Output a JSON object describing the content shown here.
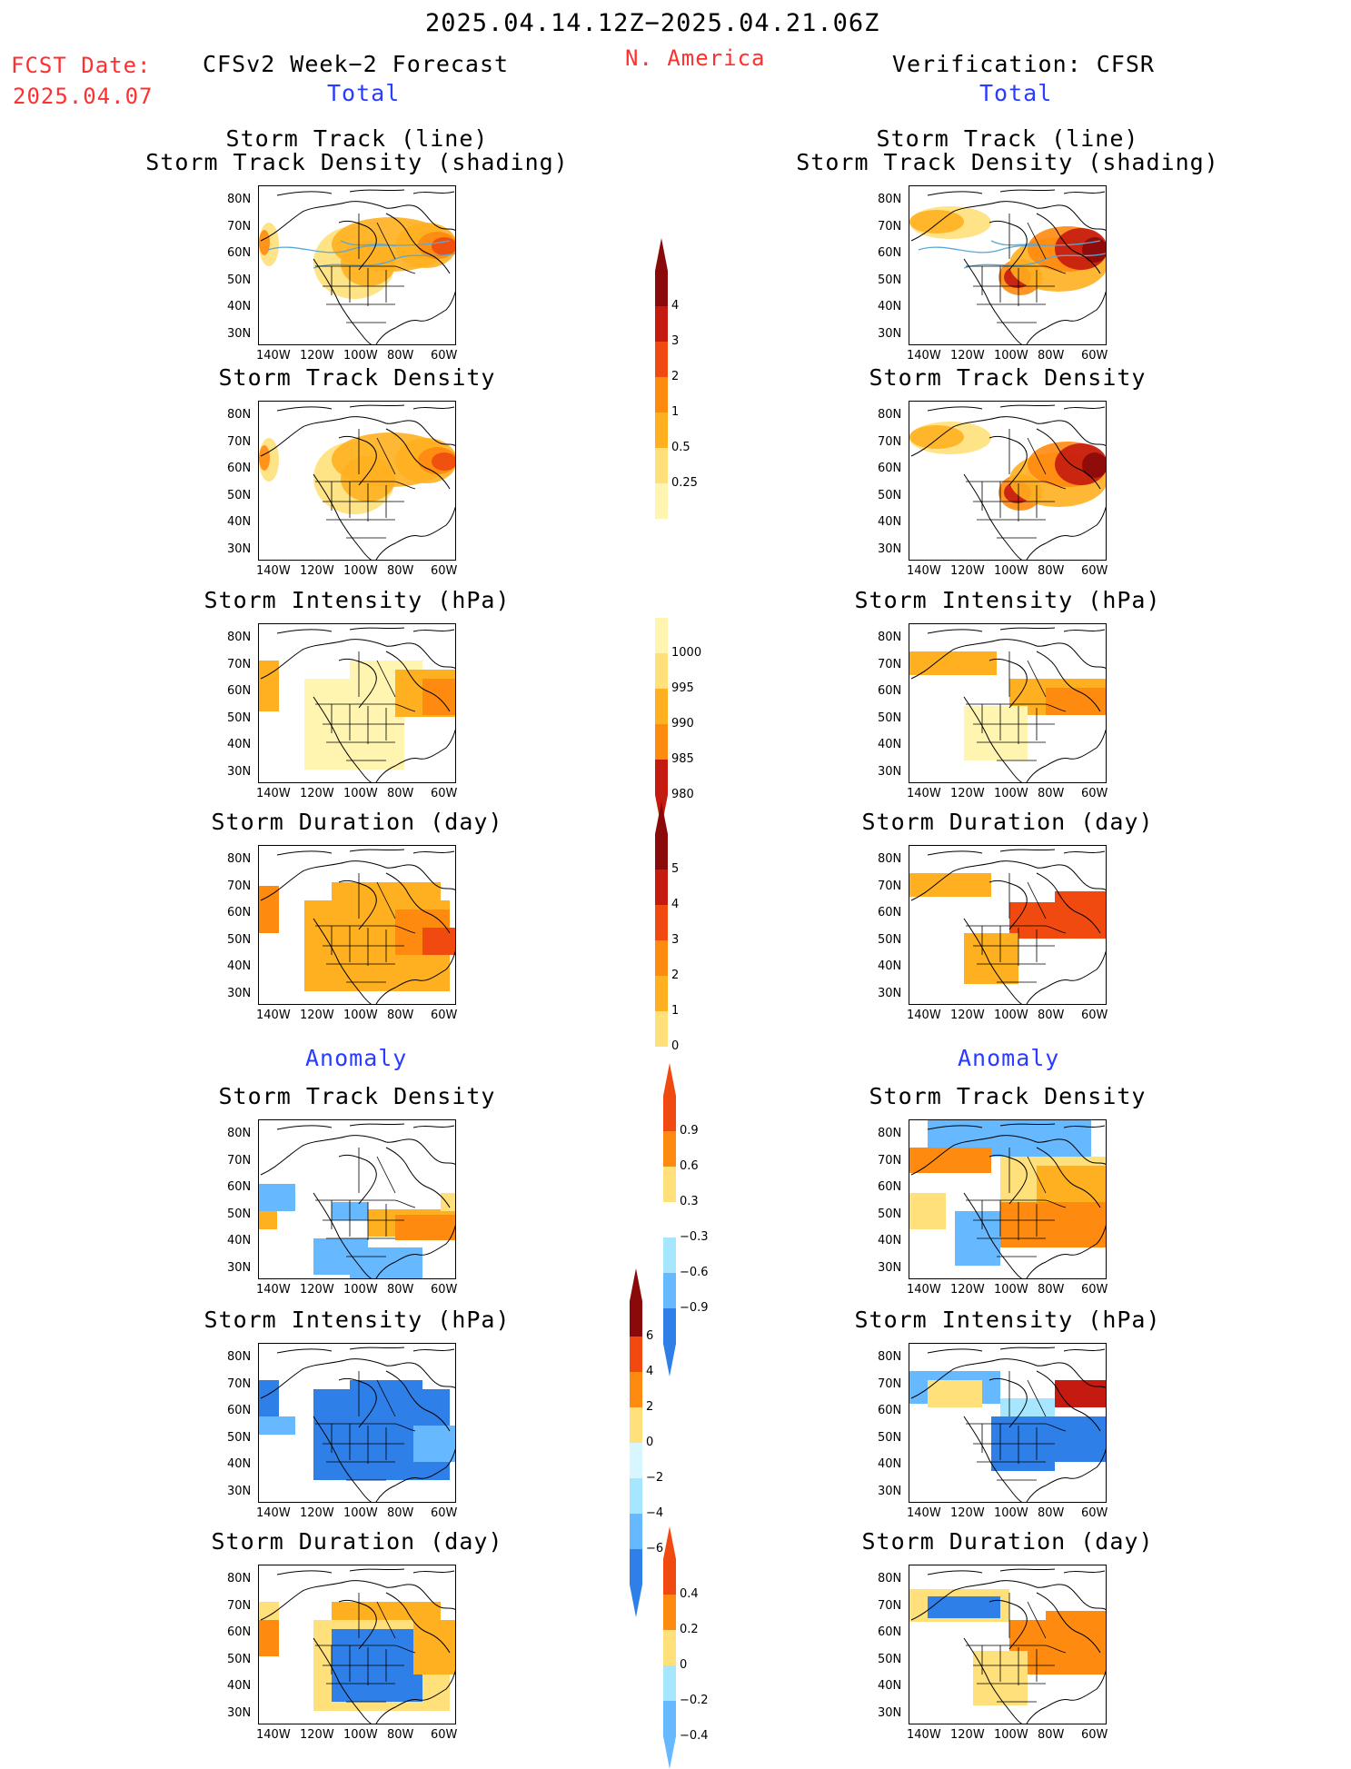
{
  "header": {
    "title": "2025.04.14.12Z−2025.04.21.06Z",
    "region": "N. America",
    "fcst_label": "FCST Date:",
    "fcst_date": "2025.04.07",
    "left_title": "CFSv2 Week−2 Forecast",
    "right_title": "Verification: CFSR",
    "total_label": "Total",
    "anomaly_label": "Anomaly"
  },
  "panel_titles": {
    "track_line": "Storm Track (line)",
    "track_shading": "Storm Track Density (shading)",
    "density": "Storm Track Density",
    "intensity": "Storm Intensity (hPa)",
    "duration": "Storm Duration (day)"
  },
  "axes": {
    "lat_labels": [
      "80N",
      "70N",
      "60N",
      "50N",
      "40N",
      "30N"
    ],
    "lon_labels": [
      "140W",
      "120W",
      "100W",
      "80W",
      "60W"
    ]
  },
  "colorbars": {
    "density_total": [
      "4",
      "3",
      "2",
      "1",
      "0.5",
      "0.25"
    ],
    "intensity_total": [
      "1000",
      "995",
      "990",
      "985",
      "980"
    ],
    "duration_total": [
      "5",
      "4",
      "3",
      "2",
      "1",
      "0"
    ],
    "density_anom": [
      "0.9",
      "0.6",
      "0.3",
      "−0.3",
      "−0.6",
      "−0.9"
    ],
    "intensity_anom": [
      "6",
      "4",
      "2",
      "0",
      "−2",
      "−4",
      "−6"
    ],
    "duration_anom": [
      "0.4",
      "0.2",
      "0",
      "−0.2",
      "−0.4"
    ]
  },
  "colors": {
    "warm": [
      "#fff5b0",
      "#ffe07a",
      "#ffb020",
      "#ff8a10",
      "#f04a10",
      "#c41a10",
      "#8a0a0a"
    ],
    "cool": [
      "#d8f6ff",
      "#a6e6ff",
      "#66b8ff",
      "#2f7fe8",
      "#1050c8"
    ],
    "track_line": "#5aa8d8",
    "title_red": "#ff3030",
    "title_blue": "#2a3cff"
  }
}
